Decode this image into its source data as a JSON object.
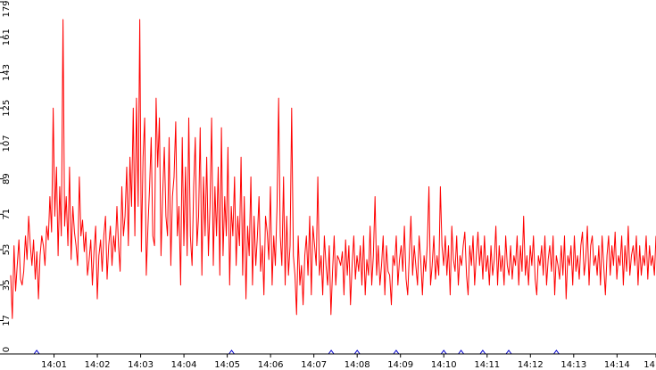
{
  "chart_data": {
    "type": "line",
    "title": "",
    "xlabel": "",
    "ylabel": "",
    "ylim": [
      0,
      179
    ],
    "yticks": [
      0,
      17,
      35,
      53,
      71,
      89,
      107,
      125,
      143,
      161,
      179
    ],
    "xlim_minutes": [
      0,
      14.9
    ],
    "xticks": [
      {
        "label": "14:01",
        "t": 1
      },
      {
        "label": "14:02",
        "t": 2
      },
      {
        "label": "14:03",
        "t": 3
      },
      {
        "label": "14:04",
        "t": 4
      },
      {
        "label": "14:05",
        "t": 5
      },
      {
        "label": "14:06",
        "t": 6
      },
      {
        "label": "14:07",
        "t": 7
      },
      {
        "label": "14:08",
        "t": 8
      },
      {
        "label": "14:09",
        "t": 9
      },
      {
        "label": "14:10",
        "t": 10
      },
      {
        "label": "14:11",
        "t": 11
      },
      {
        "label": "14:12",
        "t": 12
      },
      {
        "label": "14:13",
        "t": 13
      },
      {
        "label": "14:14",
        "t": 14
      },
      {
        "label": "14",
        "t": 14.9
      }
    ],
    "grid": false,
    "series_color": "#ff0000",
    "marker_color": "#0000cc",
    "series": [
      {
        "values": [
          40,
          18,
          55,
          32,
          45,
          58,
          38,
          35,
          42,
          60,
          48,
          70,
          55,
          45,
          58,
          38,
          52,
          28,
          50,
          60,
          55,
          45,
          65,
          58,
          80,
          62,
          125,
          70,
          95,
          50,
          85,
          60,
          170,
          65,
          80,
          55,
          95,
          48,
          75,
          62,
          55,
          45,
          90,
          60,
          68,
          52,
          62,
          40,
          48,
          58,
          35,
          52,
          65,
          28,
          50,
          58,
          42,
          60,
          70,
          38,
          55,
          65,
          45,
          60,
          52,
          75,
          55,
          42,
          85,
          60,
          70,
          95,
          55,
          100,
          75,
          125,
          60,
          130,
          75,
          170,
          52,
          100,
          120,
          40,
          65,
          85,
          110,
          60,
          55,
          130,
          95,
          120,
          50,
          80,
          105,
          70,
          60,
          110,
          45,
          80,
          90,
          118,
          60,
          75,
          35,
          110,
          55,
          95,
          50,
          120,
          60,
          45,
          85,
          110,
          55,
          70,
          115,
          40,
          90,
          60,
          100,
          50,
          75,
          120,
          45,
          85,
          60,
          95,
          40,
          115,
          50,
          80,
          60,
          105,
          35,
          75,
          60,
          90,
          45,
          70,
          55,
          100,
          40,
          80,
          28,
          65,
          50,
          90,
          35,
          70,
          45,
          60,
          80,
          42,
          55,
          30,
          70,
          62,
          48,
          85,
          35,
          60,
          45,
          75,
          130,
          60,
          45,
          90,
          35,
          70,
          40,
          55,
          125,
          50,
          40,
          20,
          60,
          35,
          45,
          25,
          50,
          60,
          40,
          70,
          30,
          65,
          55,
          45,
          90,
          40,
          50,
          30,
          60,
          45,
          35,
          55,
          20,
          42,
          60,
          35,
          50,
          48,
          45,
          52,
          30,
          58,
          40,
          55,
          25,
          45,
          60,
          38,
          50,
          42,
          55,
          35,
          60,
          30,
          48,
          40,
          65,
          35,
          50,
          80,
          40,
          55,
          35,
          45,
          60,
          30,
          55,
          42,
          40,
          25,
          50,
          45,
          60,
          35,
          48,
          55,
          42,
          65,
          38,
          30,
          50,
          70,
          40,
          55,
          45,
          35,
          60,
          48,
          30,
          50,
          42,
          55,
          85,
          35,
          45,
          60,
          38,
          50,
          40,
          85,
          55,
          45,
          60,
          40,
          55,
          30,
          65,
          48,
          42,
          60,
          35,
          50,
          45,
          55,
          62,
          40,
          30,
          55,
          45,
          60,
          35,
          50,
          62,
          45,
          55,
          38,
          60,
          42,
          50,
          35,
          55,
          40,
          48,
          65,
          35,
          55,
          42,
          50,
          35,
          60,
          45,
          40,
          55,
          38,
          50,
          45,
          60,
          35,
          55,
          42,
          70,
          40,
          50,
          35,
          55,
          45,
          60,
          38,
          30,
          50,
          45,
          55,
          40,
          60,
          35,
          48,
          55,
          42,
          60,
          30,
          50,
          45,
          38,
          55,
          40,
          60,
          28,
          50,
          45,
          55,
          35,
          60,
          42,
          50,
          38,
          55,
          62,
          40,
          48,
          65,
          35,
          55,
          60,
          45,
          50,
          40,
          55,
          35,
          60,
          45,
          30,
          50,
          60,
          40,
          55,
          45,
          62,
          38,
          50,
          45,
          60,
          35,
          55,
          42,
          65,
          40,
          50,
          55,
          45,
          60,
          35,
          55,
          40,
          50,
          45,
          60,
          38,
          55,
          45,
          50,
          40,
          60
        ]
      }
    ],
    "markers_minutes": [
      0.6,
      5.1,
      7.4,
      8.0,
      8.9,
      10.0,
      10.4,
      10.9,
      11.5,
      12.6
    ]
  }
}
